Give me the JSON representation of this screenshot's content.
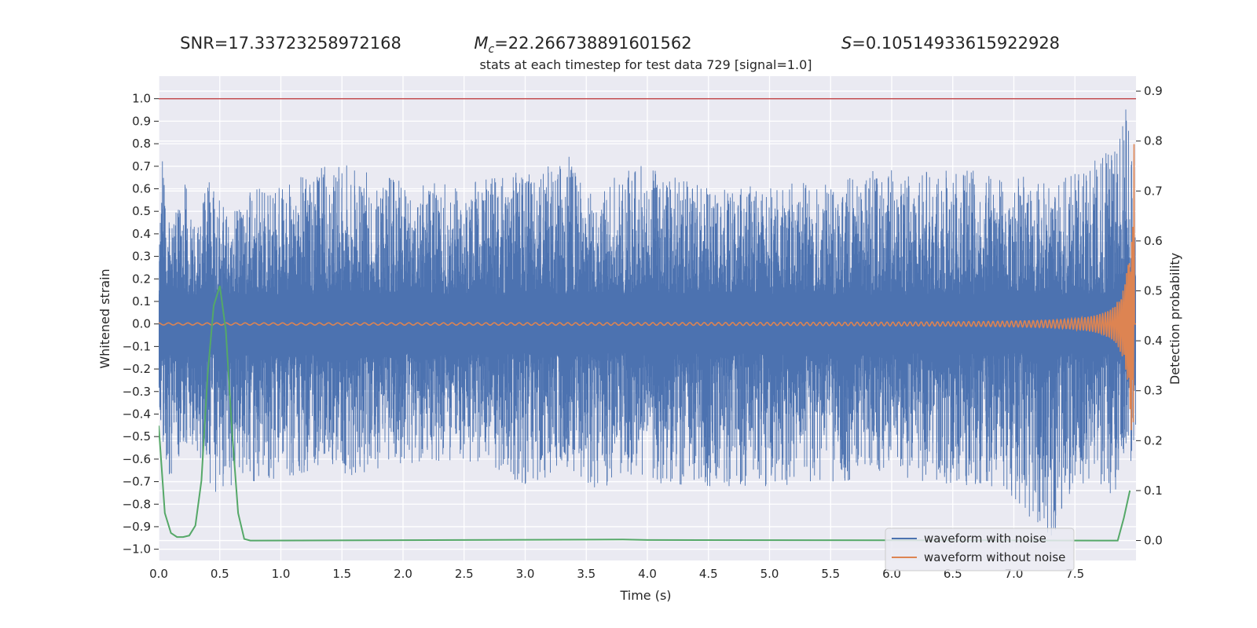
{
  "stats": {
    "snr_label": "SNR=17.33723258972168",
    "mc_symbol": "M",
    "mc_sub": "c",
    "mc_value": "=22.266738891601562",
    "s_symbol": "S",
    "s_value": "=0.10514933615922928"
  },
  "chart_data": {
    "type": "line",
    "title": "stats at each timestep for test data 729 [signal=1.0]",
    "xlabel": "Time (s)",
    "ylabel": "Whitened strain",
    "y2label": "Detection probability",
    "xlim": [
      0,
      8
    ],
    "ylim": [
      -1.05,
      1.1
    ],
    "y2lim": [
      -0.04,
      0.93
    ],
    "xticks": [
      "0.0",
      "0.5",
      "1.0",
      "1.5",
      "2.0",
      "2.5",
      "3.0",
      "3.5",
      "4.0",
      "4.5",
      "5.0",
      "5.5",
      "6.0",
      "6.5",
      "7.0",
      "7.5"
    ],
    "yticks": [
      "1.0",
      "0.9",
      "0.8",
      "0.7",
      "0.6",
      "0.5",
      "0.4",
      "0.3",
      "0.2",
      "0.1",
      "0.0",
      "−0.1",
      "−0.2",
      "−0.3",
      "−0.4",
      "−0.5",
      "−0.6",
      "−0.7",
      "−0.8",
      "−0.9",
      "−1.0"
    ],
    "y2ticks": [
      "0.9",
      "0.8",
      "0.7",
      "0.6",
      "0.5",
      "0.4",
      "0.3",
      "0.2",
      "0.1",
      "0.0"
    ],
    "grid": true,
    "legend_position": "lower-right",
    "threshold": {
      "y": 1.0,
      "color": "#c44e52"
    },
    "series": [
      {
        "name": "waveform with noise",
        "color": "#4c72b0",
        "axis": "left",
        "envelope": {
          "t": [
            0.0,
            0.03,
            0.1,
            0.2,
            0.28,
            0.35,
            0.45,
            0.55,
            0.75,
            1.05,
            1.37,
            1.5,
            2.0,
            2.5,
            3.0,
            3.35,
            3.5,
            3.9,
            4.5,
            5.0,
            5.5,
            6.0,
            6.3,
            6.9,
            7.3,
            7.6,
            7.8,
            7.93,
            8.0
          ],
          "upper": [
            0.3,
            0.73,
            0.4,
            0.69,
            0.45,
            0.55,
            0.74,
            0.5,
            0.59,
            0.63,
            0.7,
            0.71,
            0.63,
            0.62,
            0.68,
            0.76,
            0.58,
            0.71,
            0.6,
            0.62,
            0.63,
            0.7,
            0.68,
            0.68,
            0.62,
            0.69,
            0.8,
            1.0,
            0.45
          ],
          "lower": [
            -0.35,
            -0.5,
            -0.73,
            -0.53,
            -0.58,
            -0.6,
            -0.75,
            -0.72,
            -0.7,
            -0.68,
            -0.63,
            -0.68,
            -0.62,
            -0.6,
            -0.71,
            -0.65,
            -0.73,
            -0.7,
            -0.72,
            -0.72,
            -0.7,
            -0.68,
            -0.7,
            -0.73,
            -0.95,
            -0.68,
            -0.78,
            -0.8,
            -0.5
          ]
        }
      },
      {
        "name": "waveform without noise",
        "color": "#dd8452",
        "axis": "left",
        "model": {
          "tc": 7.985,
          "base_amp": 0.0045,
          "peak_amp": 0.95,
          "f0": 12.5
        }
      },
      {
        "name": "detection probability",
        "color": "#55a868",
        "axis": "right",
        "t": [
          0.0,
          0.05,
          0.1,
          0.15,
          0.2,
          0.25,
          0.3,
          0.35,
          0.4,
          0.45,
          0.5,
          0.55,
          0.6,
          0.65,
          0.7,
          0.75,
          0.8,
          3.8,
          4.0,
          7.8,
          7.85,
          7.9,
          7.95
        ],
        "values": [
          0.23,
          0.055,
          0.015,
          0.007,
          0.007,
          0.01,
          0.03,
          0.12,
          0.33,
          0.47,
          0.51,
          0.42,
          0.22,
          0.055,
          0.003,
          0.0,
          0.0,
          0.002,
          0.001,
          0.0,
          0.0,
          0.045,
          0.1
        ]
      }
    ]
  }
}
